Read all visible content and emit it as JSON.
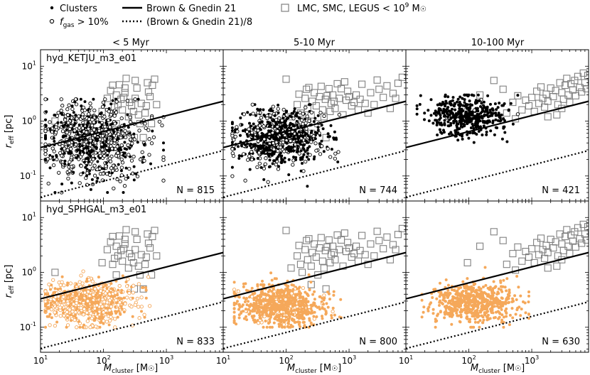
{
  "legend": {
    "clusters": "Clusters",
    "fgas_prefix": "f",
    "fgas_sub": "gas",
    "fgas_suffix": " > 10%",
    "bg21": "Brown & Gnedin 21",
    "bg21_8": "(Brown & Gnedin 21)/8",
    "obs": "LMC, SMC, LEGUS  < 10",
    "obs_exp": "9",
    "obs_unit": " M",
    "sun": "☉"
  },
  "columns": [
    "< 5 Myr",
    "5-10 Myr",
    "10-100 Myr"
  ],
  "rows": [
    "hyd_KETJU_m3_e01",
    "hyd_SPHGAL_m3_e01"
  ],
  "counts": [
    [
      "N = 815",
      "N = 744",
      "N = 421"
    ],
    [
      "N = 833",
      "N = 800",
      "N = 630"
    ]
  ],
  "axes": {
    "ylabel_main": "r",
    "ylabel_sub": "eff",
    "ylabel_unit": " [pc]",
    "xlabel_main": "M",
    "xlabel_sub": "cluster",
    "xlabel_unit": " [M",
    "xlabel_close": "]",
    "xticks": [
      "10",
      "10",
      "10"
    ],
    "xtick_exps": [
      "1",
      "2",
      "3"
    ],
    "yticks": [
      "10",
      "10",
      "10"
    ],
    "ytick_exps": [
      "1",
      "0",
      "-1"
    ]
  },
  "colors": {
    "clusters": "#000000",
    "sphgal": "#f5a85a",
    "obs": "#808080",
    "line": "#000000"
  },
  "chart_data": {
    "type": "scatter",
    "x_scale": "log",
    "y_scale": "log",
    "xlim": [
      10,
      8000
    ],
    "ylim": [
      0.035,
      20
    ],
    "xlabel": "M_cluster [M_sun]",
    "ylabel": "r_eff [pc]",
    "panels": [
      {
        "row": 0,
        "col": 0,
        "sim": "hyd_KETJU_m3_e01",
        "age": "< 5 Myr",
        "N": 815,
        "sim_color": "#000000",
        "sim_clusters": {
          "center_logx": 1.8,
          "center_logy": -0.35,
          "spread_logx": 0.4,
          "spread_logy": 0.35,
          "xrange": [
            12,
            900
          ],
          "yrange": [
            0.05,
            2.5
          ],
          "gas_rich_fraction": 0.55
        }
      },
      {
        "row": 0,
        "col": 1,
        "sim": "hyd_KETJU_m3_e01",
        "age": "5-10 Myr",
        "N": 744,
        "sim_color": "#000000",
        "sim_clusters": {
          "center_logx": 1.9,
          "center_logy": -0.3,
          "spread_logx": 0.35,
          "spread_logy": 0.25,
          "xrange": [
            14,
            700
          ],
          "yrange": [
            0.04,
            2.0
          ],
          "gas_rich_fraction": 0.3
        }
      },
      {
        "row": 0,
        "col": 2,
        "sim": "hyd_KETJU_m3_e01",
        "age": "10-100 Myr",
        "N": 421,
        "sim_color": "#000000",
        "sim_clusters": {
          "center_logx": 2.0,
          "center_logy": 0.1,
          "spread_logx": 0.3,
          "spread_logy": 0.18,
          "xrange": [
            15,
            600
          ],
          "yrange": [
            0.08,
            3.0
          ],
          "gas_rich_fraction": 0.02
        }
      },
      {
        "row": 1,
        "col": 0,
        "sim": "hyd_SPHGAL_m3_e01",
        "age": "< 5 Myr",
        "N": 833,
        "sim_color": "#f5a85a",
        "sim_clusters": {
          "center_logx": 1.75,
          "center_logy": -0.55,
          "spread_logx": 0.35,
          "spread_logy": 0.2,
          "xrange": [
            12,
            550
          ],
          "yrange": [
            0.1,
            2.0
          ],
          "gas_rich_fraction": 0.5
        }
      },
      {
        "row": 1,
        "col": 1,
        "sim": "hyd_SPHGAL_m3_e01",
        "age": "5-10 Myr",
        "N": 800,
        "sim_color": "#f5a85a",
        "sim_clusters": {
          "center_logx": 1.9,
          "center_logy": -0.6,
          "spread_logx": 0.35,
          "spread_logy": 0.18,
          "xrange": [
            15,
            800
          ],
          "yrange": [
            0.1,
            2.0
          ],
          "gas_rich_fraction": 0.1
        }
      },
      {
        "row": 1,
        "col": 2,
        "sim": "hyd_SPHGAL_m3_e01",
        "age": "10-100 Myr",
        "N": 630,
        "sim_color": "#f5a85a",
        "sim_clusters": {
          "center_logx": 2.1,
          "center_logy": -0.55,
          "spread_logx": 0.35,
          "spread_logy": 0.18,
          "xrange": [
            18,
            900
          ],
          "yrange": [
            0.1,
            2.0
          ],
          "gas_rich_fraction": 0.0
        }
      }
    ],
    "observations": [
      {
        "age": "< 5 Myr",
        "points": [
          [
            17,
            1.0
          ],
          [
            95,
            1.5
          ],
          [
            115,
            2.6
          ],
          [
            130,
            3.6
          ],
          [
            140,
            4.5
          ],
          [
            150,
            1.8
          ],
          [
            160,
            3.0
          ],
          [
            170,
            2.0
          ],
          [
            180,
            4.6
          ],
          [
            190,
            2.5
          ],
          [
            200,
            1.6
          ],
          [
            210,
            2.7
          ],
          [
            220,
            3.3
          ],
          [
            230,
            6.0
          ],
          [
            250,
            1.2
          ],
          [
            260,
            2.2
          ],
          [
            280,
            1.9
          ],
          [
            300,
            1.5
          ],
          [
            320,
            2.6
          ],
          [
            340,
            4.0
          ],
          [
            360,
            1.3
          ],
          [
            380,
            0.9
          ],
          [
            400,
            2.1
          ],
          [
            430,
            0.5
          ],
          [
            460,
            1.4
          ],
          [
            480,
            1.9
          ],
          [
            500,
            5.0
          ],
          [
            520,
            3.4
          ],
          [
            550,
            2.8
          ],
          [
            580,
            0.9
          ],
          [
            600,
            4.5
          ],
          [
            650,
            5.8
          ],
          [
            700,
            2.0
          ],
          [
            220,
            4.0
          ],
          [
            320,
            5.5
          ],
          [
            140,
            1.4
          ],
          [
            160,
            0.9
          ],
          [
            310,
            0.5
          ]
        ]
      },
      {
        "age": "5-10 Myr",
        "points": [
          [
            100,
            5.8
          ],
          [
            150,
            2.0
          ],
          [
            160,
            3.1
          ],
          [
            170,
            1.4
          ],
          [
            180,
            1.0
          ],
          [
            200,
            2.6
          ],
          [
            210,
            3.8
          ],
          [
            220,
            1.7
          ],
          [
            230,
            4.1
          ],
          [
            250,
            1.3
          ],
          [
            260,
            2.3
          ],
          [
            280,
            3.3
          ],
          [
            300,
            1.9
          ],
          [
            320,
            0.9
          ],
          [
            340,
            2.8
          ],
          [
            360,
            4.3
          ],
          [
            380,
            1.6
          ],
          [
            400,
            1.2
          ],
          [
            420,
            2.5
          ],
          [
            450,
            2.9
          ],
          [
            480,
            3.9
          ],
          [
            500,
            1.5
          ],
          [
            520,
            2.1
          ],
          [
            550,
            3.0
          ],
          [
            580,
            2.3
          ],
          [
            600,
            1.7
          ],
          [
            650,
            4.8
          ],
          [
            700,
            2.6
          ],
          [
            750,
            3.9
          ],
          [
            800,
            1.3
          ],
          [
            850,
            5.2
          ],
          [
            900,
            2.4
          ],
          [
            950,
            3.5
          ],
          [
            1000,
            2.8
          ],
          [
            1100,
            1.9
          ],
          [
            1200,
            2.2
          ],
          [
            1300,
            3.0
          ],
          [
            1400,
            1.6
          ],
          [
            1500,
            2.5
          ],
          [
            1600,
            4.7
          ],
          [
            1800,
            2.1
          ],
          [
            2000,
            1.4
          ],
          [
            2200,
            3.3
          ],
          [
            2500,
            2.0
          ],
          [
            2800,
            5.6
          ],
          [
            3000,
            3.8
          ],
          [
            3500,
            2.7
          ],
          [
            4000,
            4.4
          ],
          [
            4500,
            1.7
          ],
          [
            5000,
            3.2
          ],
          [
            5500,
            2.6
          ],
          [
            6000,
            4.9
          ],
          [
            7000,
            6.3
          ],
          [
            430,
            0.5
          ],
          [
            250,
            0.6
          ],
          [
            120,
            1.2
          ]
        ]
      },
      {
        "age": "10-100 Myr",
        "points": [
          [
            95,
            1.5
          ],
          [
            150,
            3.0
          ],
          [
            250,
            5.5
          ],
          [
            350,
            3.8
          ],
          [
            400,
            1.4
          ],
          [
            500,
            2.2
          ],
          [
            550,
            1.1
          ],
          [
            600,
            2.9
          ],
          [
            700,
            1.6
          ],
          [
            800,
            2.4
          ],
          [
            900,
            1.9
          ],
          [
            1000,
            2.7
          ],
          [
            1100,
            1.5
          ],
          [
            1200,
            3.5
          ],
          [
            1300,
            2.1
          ],
          [
            1400,
            4.2
          ],
          [
            1500,
            2.6
          ],
          [
            1600,
            1.8
          ],
          [
            1700,
            3.1
          ],
          [
            1800,
            2.3
          ],
          [
            2000,
            4.0
          ],
          [
            2200,
            2.8
          ],
          [
            2400,
            3.6
          ],
          [
            2600,
            2.0
          ],
          [
            2800,
            5.0
          ],
          [
            3000,
            3.3
          ],
          [
            3200,
            2.5
          ],
          [
            3400,
            4.5
          ],
          [
            3600,
            6.0
          ],
          [
            3800,
            3.0
          ],
          [
            4000,
            2.2
          ],
          [
            4200,
            4.8
          ],
          [
            4500,
            3.7
          ],
          [
            4800,
            5.5
          ],
          [
            5000,
            2.9
          ],
          [
            5400,
            6.5
          ],
          [
            5800,
            4.1
          ],
          [
            6200,
            3.4
          ],
          [
            6600,
            7.5
          ],
          [
            7000,
            5.0
          ],
          [
            7500,
            3.9
          ],
          [
            7800,
            6.8
          ],
          [
            3000,
            1.7
          ],
          [
            2500,
            1.3
          ],
          [
            1800,
            1.2
          ]
        ]
      }
    ],
    "lines": [
      {
        "name": "Brown & Gnedin 21",
        "style": "solid",
        "points": [
          [
            10,
            0.33
          ],
          [
            8000,
            2.3
          ]
        ]
      },
      {
        "name": "(Brown & Gnedin 21)/8",
        "style": "dotted",
        "points": [
          [
            10,
            0.041
          ],
          [
            8000,
            0.29
          ]
        ]
      }
    ]
  }
}
